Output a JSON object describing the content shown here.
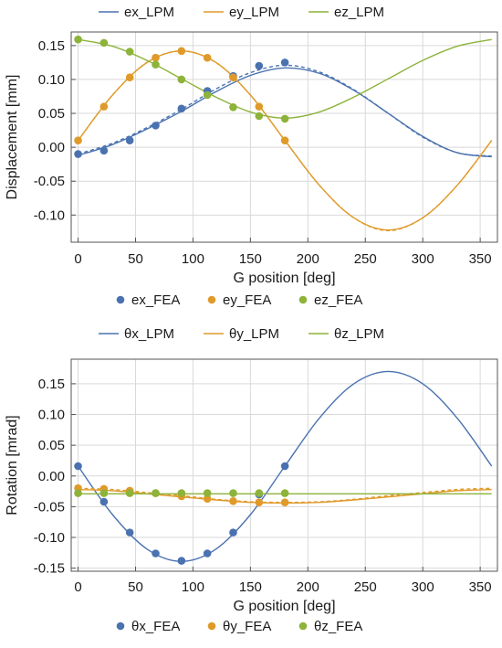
{
  "chart_data": [
    {
      "type": "line",
      "xlabel": "G position [deg]",
      "ylabel": "Displacement [mm]",
      "xlim": [
        -6,
        365
      ],
      "ylim": [
        -0.14,
        0.17
      ],
      "x_ticks": [
        0,
        50,
        100,
        150,
        200,
        250,
        300,
        350
      ],
      "y_ticks": [
        -0.1,
        -0.05,
        0.0,
        0.05,
        0.1,
        0.15
      ],
      "y_tick_labels": [
        "-0.10",
        "-0.05",
        "0.00",
        "0.05",
        "0.10",
        "0.15"
      ],
      "grid": true,
      "legend_top": [
        "ex_LPM",
        "ey_LPM",
        "ez_LPM"
      ],
      "legend_bottom": [
        "ex_FEA",
        "ey_FEA",
        "ez_FEA"
      ],
      "colors": {
        "ex": "#4a72b0",
        "ey": "#e09a2a",
        "ez": "#8db33a"
      },
      "series": [
        {
          "name": "ex_LPM",
          "style": "line",
          "x": [
            0,
            30,
            60,
            90,
            120,
            150,
            180,
            210,
            240,
            270,
            300,
            330,
            360
          ],
          "y": [
            -0.012,
            0.004,
            0.027,
            0.053,
            0.082,
            0.106,
            0.117,
            0.109,
            0.084,
            0.05,
            0.016,
            -0.008,
            -0.014
          ]
        },
        {
          "name": "ex_LPM",
          "style": "dashed",
          "x": [
            0,
            30,
            60,
            90,
            120,
            150,
            180,
            210,
            240,
            270,
            300,
            330,
            360
          ],
          "y": [
            -0.01,
            0.006,
            0.029,
            0.056,
            0.086,
            0.11,
            0.121,
            0.111,
            0.085,
            0.05,
            0.015,
            -0.008,
            -0.013
          ]
        },
        {
          "name": "ey_LPM",
          "style": "line",
          "x": [
            0,
            30,
            60,
            90,
            120,
            150,
            180,
            210,
            240,
            270,
            300,
            330,
            360
          ],
          "y": [
            0.01,
            0.077,
            0.125,
            0.142,
            0.125,
            0.077,
            0.01,
            -0.056,
            -0.104,
            -0.122,
            -0.104,
            -0.056,
            0.01
          ]
        },
        {
          "name": "ey_LPM",
          "style": "dashed",
          "x": [
            0,
            30,
            60,
            90,
            120,
            150,
            180,
            210,
            240,
            270,
            300,
            330,
            360
          ],
          "y": [
            0.01,
            0.077,
            0.125,
            0.142,
            0.125,
            0.077,
            0.01,
            -0.056,
            -0.104,
            -0.123,
            -0.104,
            -0.056,
            0.01
          ]
        },
        {
          "name": "ez_LPM",
          "style": "line",
          "x": [
            0,
            30,
            60,
            90,
            120,
            150,
            180,
            210,
            240,
            270,
            300,
            330,
            360
          ],
          "y": [
            0.159,
            0.149,
            0.128,
            0.101,
            0.074,
            0.052,
            0.043,
            0.052,
            0.074,
            0.101,
            0.128,
            0.149,
            0.159
          ]
        },
        {
          "name": "ex_FEA",
          "style": "points",
          "x": [
            0,
            22.5,
            45,
            67.5,
            90,
            112.5,
            135,
            157.5,
            180
          ],
          "y": [
            -0.01,
            -0.005,
            0.01,
            0.032,
            0.057,
            0.083,
            0.105,
            0.12,
            0.125
          ]
        },
        {
          "name": "ey_FEA",
          "style": "points",
          "x": [
            0,
            22.5,
            45,
            67.5,
            90,
            112.5,
            135,
            157.5,
            180
          ],
          "y": [
            0.01,
            0.06,
            0.103,
            0.132,
            0.142,
            0.132,
            0.103,
            0.06,
            0.01
          ]
        },
        {
          "name": "ez_FEA",
          "style": "points",
          "x": [
            0,
            22.5,
            45,
            67.5,
            90,
            112.5,
            135,
            157.5,
            180
          ],
          "y": [
            0.159,
            0.154,
            0.141,
            0.122,
            0.1,
            0.077,
            0.059,
            0.046,
            0.042
          ]
        }
      ]
    },
    {
      "type": "line",
      "xlabel": "G position [deg]",
      "ylabel": "Rotation [mrad]",
      "xlim": [
        -6,
        365
      ],
      "ylim": [
        -0.155,
        0.19
      ],
      "x_ticks": [
        0,
        50,
        100,
        150,
        200,
        250,
        300,
        350
      ],
      "y_ticks": [
        -0.15,
        -0.1,
        -0.05,
        0.0,
        0.05,
        0.1,
        0.15
      ],
      "y_tick_labels": [
        "-0.15",
        "-0.10",
        "-0.05",
        "0.00",
        "0.05",
        "0.10",
        "0.15"
      ],
      "grid": true,
      "legend_top": [
        "θx_LPM",
        "θy_LPM",
        "θz_LPM"
      ],
      "legend_bottom": [
        "θx_FEA",
        "θy_FEA",
        "θz_FEA"
      ],
      "colors": {
        "ex": "#4a72b0",
        "ey": "#e09a2a",
        "ez": "#8db33a"
      },
      "series": [
        {
          "name": "θx_LPM",
          "style": "line",
          "x": [
            0,
            30,
            60,
            90,
            120,
            150,
            180,
            210,
            240,
            270,
            300,
            330,
            360
          ],
          "y": [
            0.016,
            -0.063,
            -0.119,
            -0.139,
            -0.119,
            -0.063,
            0.016,
            0.094,
            0.15,
            0.17,
            0.15,
            0.094,
            0.016
          ]
        },
        {
          "name": "θy_LPM",
          "style": "line",
          "x": [
            0,
            30,
            60,
            90,
            120,
            150,
            180,
            210,
            240,
            270,
            300,
            330,
            360
          ],
          "y": [
            -0.022,
            -0.024,
            -0.029,
            -0.034,
            -0.039,
            -0.043,
            -0.044,
            -0.043,
            -0.039,
            -0.034,
            -0.029,
            -0.024,
            -0.022
          ]
        },
        {
          "name": "θy_LPM",
          "style": "dashed",
          "x": [
            0,
            30,
            60,
            90,
            120,
            150,
            180,
            210,
            240,
            270,
            300,
            330,
            360
          ],
          "y": [
            -0.02,
            -0.022,
            -0.027,
            -0.032,
            -0.038,
            -0.042,
            -0.043,
            -0.042,
            -0.038,
            -0.032,
            -0.027,
            -0.022,
            -0.02
          ]
        },
        {
          "name": "θz_LPM",
          "style": "line",
          "x": [
            0,
            360
          ],
          "y": [
            -0.029,
            -0.029
          ]
        },
        {
          "name": "θx_FEA",
          "style": "points",
          "x": [
            0,
            22.5,
            45,
            67.5,
            90,
            112.5,
            135,
            157.5,
            180
          ],
          "y": [
            0.016,
            -0.042,
            -0.092,
            -0.126,
            -0.138,
            -0.126,
            -0.092,
            -0.03,
            0.016
          ]
        },
        {
          "name": "θy_FEA",
          "style": "points",
          "x": [
            0,
            22.5,
            45,
            67.5,
            90,
            112.5,
            135,
            157.5,
            180
          ],
          "y": [
            -0.02,
            -0.021,
            -0.024,
            -0.028,
            -0.033,
            -0.037,
            -0.041,
            -0.043,
            -0.043
          ]
        },
        {
          "name": "θz_FEA",
          "style": "points",
          "x": [
            0,
            22.5,
            45,
            67.5,
            90,
            112.5,
            135,
            157.5,
            180
          ],
          "y": [
            -0.028,
            -0.028,
            -0.028,
            -0.028,
            -0.028,
            -0.028,
            -0.028,
            -0.028,
            -0.028
          ]
        }
      ]
    }
  ]
}
